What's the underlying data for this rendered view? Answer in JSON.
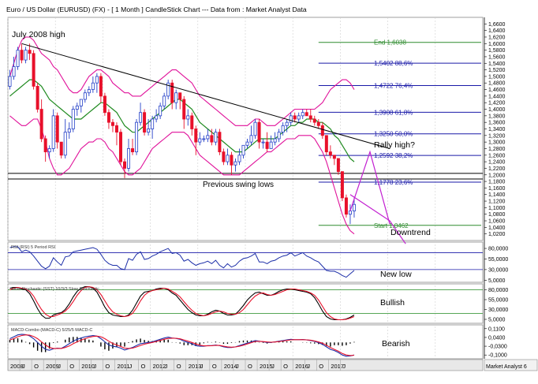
{
  "chart_data": {
    "type": "candlestick",
    "title": "Euro / US Dollar (EURUSD) (FX) - [ 1 Month ] CandleStick Chart --- Data from : Market Analyst Data",
    "footer_label": "Market Analyst 6",
    "x_ticks": [
      "2008",
      "J",
      "O",
      "2009",
      "J",
      "O",
      "2010",
      "J",
      "O",
      "2011",
      "J",
      "O",
      "2012",
      "J",
      "O",
      "2013",
      "J",
      "O",
      "2014",
      "J",
      "O",
      "2015",
      "J",
      "O",
      "2016",
      "J",
      "O",
      "2017",
      "J"
    ],
    "price_axis": {
      "ylim": [
        1.0,
        1.68
      ],
      "tick_labels": [
        "1,6600",
        "1,6400",
        "1,6200",
        "1,6000",
        "1,5800",
        "1,5600",
        "1,5400",
        "1,5200",
        "1,5000",
        "1,4800",
        "1,4600",
        "1,4400",
        "1,4200",
        "1,4000",
        "1,3800",
        "1,3600",
        "1,3400",
        "1,3200",
        "1,3000",
        "1,2800",
        "1,2600",
        "1,2400",
        "1,2200",
        "1,2000",
        "1,1800",
        "1,1600",
        "1,1400",
        "1,1200",
        "1,1000",
        "1,0800",
        "1,0600",
        "1,0400",
        "1,0200"
      ],
      "tick_values": [
        1.66,
        1.64,
        1.62,
        1.6,
        1.58,
        1.56,
        1.54,
        1.52,
        1.5,
        1.48,
        1.46,
        1.44,
        1.42,
        1.4,
        1.38,
        1.36,
        1.34,
        1.32,
        1.3,
        1.28,
        1.26,
        1.24,
        1.22,
        1.2,
        1.18,
        1.16,
        1.14,
        1.12,
        1.1,
        1.08,
        1.06,
        1.04,
        1.02
      ]
    },
    "candles": [
      [
        1.47,
        1.52,
        1.46,
        1.5
      ],
      [
        1.5,
        1.56,
        1.49,
        1.53
      ],
      [
        1.53,
        1.59,
        1.52,
        1.58
      ],
      [
        1.58,
        1.6,
        1.54,
        1.55
      ],
      [
        1.55,
        1.59,
        1.54,
        1.58
      ],
      [
        1.58,
        1.6,
        1.55,
        1.57
      ],
      [
        1.57,
        1.58,
        1.46,
        1.47
      ],
      [
        1.47,
        1.48,
        1.39,
        1.4
      ],
      [
        1.4,
        1.43,
        1.3,
        1.31
      ],
      [
        1.31,
        1.32,
        1.24,
        1.27
      ],
      [
        1.27,
        1.29,
        1.25,
        1.28
      ],
      [
        1.28,
        1.4,
        1.27,
        1.38
      ],
      [
        1.38,
        1.39,
        1.28,
        1.3
      ],
      [
        1.3,
        1.3,
        1.25,
        1.26
      ],
      [
        1.26,
        1.37,
        1.25,
        1.33
      ],
      [
        1.33,
        1.36,
        1.31,
        1.34
      ],
      [
        1.34,
        1.41,
        1.33,
        1.4
      ],
      [
        1.4,
        1.42,
        1.38,
        1.41
      ],
      [
        1.41,
        1.43,
        1.39,
        1.43
      ],
      [
        1.43,
        1.46,
        1.42,
        1.45
      ],
      [
        1.45,
        1.47,
        1.44,
        1.46
      ],
      [
        1.46,
        1.5,
        1.45,
        1.48
      ],
      [
        1.48,
        1.51,
        1.45,
        1.5
      ],
      [
        1.5,
        1.51,
        1.42,
        1.44
      ],
      [
        1.44,
        1.45,
        1.38,
        1.39
      ],
      [
        1.39,
        1.4,
        1.34,
        1.36
      ],
      [
        1.36,
        1.37,
        1.33,
        1.35
      ],
      [
        1.35,
        1.36,
        1.29,
        1.33
      ],
      [
        1.33,
        1.34,
        1.23,
        1.24
      ],
      [
        1.24,
        1.25,
        1.19,
        1.22
      ],
      [
        1.22,
        1.31,
        1.21,
        1.28
      ],
      [
        1.28,
        1.31,
        1.26,
        1.27
      ],
      [
        1.27,
        1.37,
        1.26,
        1.36
      ],
      [
        1.36,
        1.42,
        1.35,
        1.39
      ],
      [
        1.39,
        1.4,
        1.32,
        1.33
      ],
      [
        1.33,
        1.37,
        1.32,
        1.34
      ],
      [
        1.34,
        1.38,
        1.31,
        1.37
      ],
      [
        1.37,
        1.4,
        1.36,
        1.38
      ],
      [
        1.38,
        1.42,
        1.37,
        1.41
      ],
      [
        1.41,
        1.45,
        1.4,
        1.44
      ],
      [
        1.44,
        1.49,
        1.43,
        1.48
      ],
      [
        1.48,
        1.49,
        1.4,
        1.42
      ],
      [
        1.42,
        1.46,
        1.4,
        1.45
      ],
      [
        1.45,
        1.45,
        1.4,
        1.43
      ],
      [
        1.43,
        1.44,
        1.34,
        1.37
      ],
      [
        1.37,
        1.4,
        1.35,
        1.38
      ],
      [
        1.38,
        1.39,
        1.32,
        1.34
      ],
      [
        1.34,
        1.35,
        1.26,
        1.3
      ],
      [
        1.3,
        1.33,
        1.29,
        1.31
      ],
      [
        1.31,
        1.32,
        1.3,
        1.31
      ],
      [
        1.31,
        1.34,
        1.3,
        1.32
      ],
      [
        1.32,
        1.34,
        1.29,
        1.3
      ],
      [
        1.3,
        1.34,
        1.29,
        1.33
      ],
      [
        1.33,
        1.34,
        1.26,
        1.27
      ],
      [
        1.27,
        1.28,
        1.23,
        1.24
      ],
      [
        1.24,
        1.28,
        1.23,
        1.26
      ],
      [
        1.26,
        1.27,
        1.2,
        1.23
      ],
      [
        1.23,
        1.25,
        1.21,
        1.24
      ],
      [
        1.24,
        1.28,
        1.23,
        1.26
      ],
      [
        1.26,
        1.29,
        1.25,
        1.29
      ],
      [
        1.29,
        1.31,
        1.28,
        1.3
      ],
      [
        1.3,
        1.35,
        1.29,
        1.32
      ],
      [
        1.32,
        1.37,
        1.31,
        1.36
      ],
      [
        1.36,
        1.37,
        1.28,
        1.3
      ],
      [
        1.3,
        1.31,
        1.28,
        1.3
      ],
      [
        1.3,
        1.33,
        1.27,
        1.28
      ],
      [
        1.28,
        1.32,
        1.28,
        1.3
      ],
      [
        1.3,
        1.33,
        1.29,
        1.31
      ],
      [
        1.31,
        1.34,
        1.3,
        1.33
      ],
      [
        1.33,
        1.36,
        1.32,
        1.35
      ],
      [
        1.35,
        1.37,
        1.33,
        1.36
      ],
      [
        1.36,
        1.39,
        1.35,
        1.38
      ],
      [
        1.38,
        1.39,
        1.36,
        1.37
      ],
      [
        1.37,
        1.39,
        1.36,
        1.38
      ],
      [
        1.38,
        1.4,
        1.37,
        1.39
      ],
      [
        1.39,
        1.4,
        1.38,
        1.38
      ],
      [
        1.38,
        1.4,
        1.36,
        1.37
      ],
      [
        1.37,
        1.38,
        1.35,
        1.36
      ],
      [
        1.36,
        1.37,
        1.34,
        1.35
      ],
      [
        1.35,
        1.36,
        1.31,
        1.32
      ],
      [
        1.32,
        1.32,
        1.26,
        1.27
      ],
      [
        1.27,
        1.29,
        1.25,
        1.26
      ],
      [
        1.26,
        1.26,
        1.23,
        1.25
      ],
      [
        1.25,
        1.25,
        1.2,
        1.21
      ],
      [
        1.21,
        1.21,
        1.12,
        1.13
      ],
      [
        1.13,
        1.14,
        1.07,
        1.08
      ],
      [
        1.08,
        1.11,
        1.05,
        1.09
      ],
      [
        1.09,
        1.13,
        1.07,
        1.11
      ]
    ],
    "ma20": [
      1.44,
      1.45,
      1.46,
      1.47,
      1.48,
      1.49,
      1.49,
      1.48,
      1.47,
      1.45,
      1.43,
      1.42,
      1.41,
      1.4,
      1.39,
      1.38,
      1.37,
      1.37,
      1.37,
      1.38,
      1.39,
      1.4,
      1.41,
      1.42,
      1.42,
      1.41,
      1.4,
      1.39,
      1.37,
      1.35,
      1.34,
      1.33,
      1.33,
      1.34,
      1.35,
      1.36,
      1.37,
      1.38,
      1.39,
      1.4,
      1.41,
      1.42,
      1.43,
      1.43,
      1.42,
      1.41,
      1.4,
      1.38,
      1.36,
      1.35,
      1.34,
      1.33,
      1.32,
      1.31,
      1.3,
      1.29,
      1.28,
      1.27,
      1.27,
      1.27,
      1.28,
      1.29,
      1.3,
      1.31,
      1.31,
      1.31,
      1.31,
      1.31,
      1.32,
      1.33,
      1.34,
      1.35,
      1.35,
      1.36,
      1.36,
      1.37,
      1.37,
      1.37,
      1.36,
      1.36,
      1.35,
      1.34,
      1.32,
      1.31,
      1.29,
      1.27,
      1.25,
      1.24
    ],
    "bb_upper": [
      1.5,
      1.54,
      1.58,
      1.61,
      1.62,
      1.62,
      1.61,
      1.59,
      1.57,
      1.56,
      1.55,
      1.53,
      1.52,
      1.5,
      1.48,
      1.46,
      1.45,
      1.45,
      1.46,
      1.48,
      1.5,
      1.51,
      1.52,
      1.52,
      1.51,
      1.5,
      1.48,
      1.47,
      1.46,
      1.45,
      1.45,
      1.44,
      1.44,
      1.44,
      1.45,
      1.46,
      1.47,
      1.48,
      1.49,
      1.5,
      1.51,
      1.52,
      1.52,
      1.51,
      1.5,
      1.49,
      1.48,
      1.46,
      1.44,
      1.43,
      1.42,
      1.41,
      1.4,
      1.39,
      1.38,
      1.37,
      1.36,
      1.35,
      1.35,
      1.35,
      1.35,
      1.36,
      1.37,
      1.37,
      1.36,
      1.35,
      1.35,
      1.35,
      1.36,
      1.37,
      1.38,
      1.39,
      1.4,
      1.4,
      1.4,
      1.4,
      1.4,
      1.4,
      1.41,
      1.42,
      1.44,
      1.46,
      1.47,
      1.48,
      1.49,
      1.49,
      1.48,
      1.46
    ],
    "bb_lower": [
      1.38,
      1.37,
      1.36,
      1.35,
      1.35,
      1.36,
      1.37,
      1.37,
      1.34,
      1.3,
      1.25,
      1.22,
      1.2,
      1.2,
      1.21,
      1.22,
      1.24,
      1.26,
      1.28,
      1.29,
      1.3,
      1.3,
      1.31,
      1.31,
      1.3,
      1.28,
      1.27,
      1.25,
      1.23,
      1.21,
      1.2,
      1.2,
      1.21,
      1.22,
      1.24,
      1.26,
      1.28,
      1.29,
      1.3,
      1.31,
      1.32,
      1.33,
      1.33,
      1.33,
      1.33,
      1.32,
      1.3,
      1.28,
      1.26,
      1.25,
      1.24,
      1.23,
      1.22,
      1.21,
      1.2,
      1.2,
      1.2,
      1.2,
      1.2,
      1.21,
      1.22,
      1.23,
      1.24,
      1.25,
      1.26,
      1.27,
      1.27,
      1.28,
      1.29,
      1.3,
      1.31,
      1.31,
      1.31,
      1.32,
      1.32,
      1.32,
      1.32,
      1.31,
      1.29,
      1.27,
      1.24,
      1.2,
      1.16,
      1.12,
      1.08,
      1.05,
      1.03,
      1.02
    ],
    "trendline": {
      "x": [
        3,
        96
      ],
      "y": [
        1.6,
        1.28
      ]
    },
    "july_high_label": "July 2008 high",
    "swing_lows": {
      "label": "Previous swing lows",
      "y": [
        1.2045,
        1.1875
      ]
    },
    "rally": {
      "label": "Rally high?",
      "x": [
        86,
        91,
        96
      ],
      "y": [
        1.09,
        1.27,
        1.05
      ]
    },
    "downtrend": {
      "label": "Downtrend",
      "x": [
        86,
        96,
        100
      ],
      "y": [
        1.14,
        1.06,
        0.99
      ]
    },
    "fib_levels": [
      {
        "value": 1.6038,
        "label": "End 1,6038",
        "color": "#2e8b2e"
      },
      {
        "value": 1.5402,
        "label": "1,5402 88,6%",
        "color": "#1a1aa8"
      },
      {
        "value": 1.4722,
        "label": "1,4722 76,4%",
        "color": "#1a1aa8"
      },
      {
        "value": 1.3908,
        "label": "1,3908 61,8%",
        "color": "#1a1aa8"
      },
      {
        "value": 1.325,
        "label": "1,3250 50,0%",
        "color": "#1a1aa8"
      },
      {
        "value": 1.2592,
        "label": "1,2592 38,2%",
        "color": "#1a1aa8"
      },
      {
        "value": 1.1778,
        "label": "1,1778 23,6%",
        "color": "#1a1aa8"
      },
      {
        "value": 1.0462,
        "label": "Start 1,0462",
        "color": "#2e8b2e"
      }
    ],
    "rsi": {
      "label": "RSI (RSI) 5 Period RSI",
      "annotation": "New low",
      "ylim": [
        0,
        95
      ],
      "tick_labels": [
        "80,0000",
        "55,0000",
        "30,0000",
        "5,0000"
      ],
      "tick_values": [
        80,
        55,
        30,
        5
      ],
      "levels": [
        70,
        30
      ],
      "values": [
        82,
        84,
        84,
        72,
        76,
        72,
        62,
        50,
        38,
        32,
        38,
        58,
        48,
        40,
        60,
        62,
        72,
        74,
        76,
        78,
        80,
        82,
        78,
        66,
        52,
        44,
        40,
        40,
        32,
        30,
        56,
        52,
        66,
        72,
        54,
        56,
        62,
        66,
        72,
        76,
        80,
        68,
        70,
        64,
        50,
        54,
        46,
        40,
        44,
        46,
        50,
        44,
        52,
        40,
        34,
        44,
        36,
        40,
        50,
        56,
        58,
        62,
        68,
        48,
        48,
        44,
        50,
        52,
        58,
        62,
        64,
        70,
        62,
        66,
        70,
        62,
        58,
        52,
        48,
        38,
        28,
        26,
        26,
        22,
        16,
        12,
        20,
        28
      ]
    },
    "stoch": {
      "label": "Slow Stochastic (SST) 10/3/3 Slow Stochastic",
      "annotation": "Bullish",
      "ylim": [
        -5,
        95
      ],
      "tick_labels": [
        "80,0000",
        "55,0000",
        "30,0000",
        "5,0000"
      ],
      "tick_values": [
        80,
        55,
        30,
        5
      ],
      "levels": [
        80,
        20
      ],
      "k": [
        84,
        86,
        86,
        82,
        80,
        70,
        52,
        32,
        16,
        8,
        8,
        16,
        20,
        22,
        30,
        44,
        62,
        76,
        84,
        88,
        88,
        84,
        74,
        56,
        36,
        22,
        16,
        14,
        12,
        12,
        16,
        28,
        46,
        64,
        74,
        76,
        78,
        82,
        84,
        84,
        80,
        72,
        66,
        54,
        42,
        30,
        22,
        16,
        14,
        14,
        18,
        24,
        28,
        26,
        20,
        16,
        16,
        18,
        28,
        40,
        54,
        64,
        72,
        74,
        70,
        66,
        66,
        70,
        76,
        80,
        82,
        82,
        80,
        78,
        76,
        74,
        70,
        60,
        44,
        26,
        12,
        6,
        4,
        4,
        4,
        6,
        10,
        16
      ],
      "d": [
        80,
        84,
        86,
        84,
        82,
        76,
        64,
        46,
        30,
        18,
        12,
        12,
        16,
        20,
        26,
        36,
        50,
        66,
        78,
        86,
        88,
        86,
        80,
        68,
        52,
        36,
        24,
        18,
        14,
        12,
        14,
        20,
        34,
        52,
        66,
        74,
        78,
        80,
        82,
        84,
        82,
        76,
        70,
        62,
        50,
        38,
        28,
        20,
        16,
        14,
        16,
        20,
        24,
        26,
        24,
        20,
        18,
        18,
        22,
        30,
        42,
        54,
        64,
        70,
        72,
        68,
        66,
        68,
        72,
        76,
        80,
        82,
        82,
        80,
        78,
        76,
        72,
        66,
        54,
        38,
        22,
        12,
        6,
        4,
        4,
        5,
        8,
        12
      ]
    },
    "macd": {
      "label": "MACD-Combo (MACD-C) 5/25/5 MACD-C",
      "annotation": "Bearish",
      "ylim": [
        -0.13,
        0.14
      ],
      "tick_labels": [
        "0,1100",
        "0,0400",
        "-0,0300",
        "-0,1000"
      ],
      "tick_values": [
        0.11,
        0.04,
        -0.03,
        -0.1
      ],
      "macd": [
        0.03,
        0.045,
        0.06,
        0.065,
        0.062,
        0.052,
        0.03,
        0.0,
        -0.03,
        -0.055,
        -0.062,
        -0.05,
        -0.045,
        -0.048,
        -0.03,
        -0.01,
        0.01,
        0.025,
        0.035,
        0.045,
        0.05,
        0.055,
        0.05,
        0.03,
        0.005,
        -0.02,
        -0.03,
        -0.035,
        -0.045,
        -0.06,
        -0.05,
        -0.04,
        -0.025,
        -0.01,
        -0.005,
        0.0,
        0.005,
        0.015,
        0.025,
        0.035,
        0.042,
        0.035,
        0.032,
        0.025,
        0.01,
        0.0,
        -0.01,
        -0.025,
        -0.03,
        -0.03,
        -0.025,
        -0.025,
        -0.02,
        -0.025,
        -0.035,
        -0.04,
        -0.04,
        -0.035,
        -0.025,
        -0.015,
        -0.005,
        0.005,
        0.015,
        0.01,
        0.005,
        0.0,
        0.0,
        0.005,
        0.01,
        0.015,
        0.02,
        0.025,
        0.022,
        0.022,
        0.023,
        0.02,
        0.015,
        0.008,
        -0.002,
        -0.015,
        -0.035,
        -0.055,
        -0.065,
        -0.08,
        -0.1,
        -0.11,
        -0.108,
        -0.1
      ],
      "signal": [
        0.02,
        0.03,
        0.045,
        0.055,
        0.06,
        0.058,
        0.048,
        0.03,
        0.005,
        -0.02,
        -0.04,
        -0.048,
        -0.048,
        -0.048,
        -0.04,
        -0.028,
        -0.01,
        0.005,
        0.018,
        0.03,
        0.04,
        0.048,
        0.05,
        0.045,
        0.03,
        0.01,
        -0.008,
        -0.02,
        -0.032,
        -0.045,
        -0.048,
        -0.045,
        -0.036,
        -0.024,
        -0.014,
        -0.006,
        0.0,
        0.008,
        0.016,
        0.025,
        0.032,
        0.034,
        0.033,
        0.029,
        0.02,
        0.01,
        0.0,
        -0.012,
        -0.022,
        -0.027,
        -0.027,
        -0.026,
        -0.023,
        -0.024,
        -0.03,
        -0.035,
        -0.038,
        -0.036,
        -0.03,
        -0.022,
        -0.012,
        -0.002,
        0.008,
        0.009,
        0.007,
        0.004,
        0.002,
        0.004,
        0.007,
        0.011,
        0.016,
        0.021,
        0.022,
        0.022,
        0.022,
        0.021,
        0.018,
        0.012,
        0.004,
        -0.006,
        -0.022,
        -0.04,
        -0.055,
        -0.07,
        -0.088,
        -0.1,
        -0.104,
        -0.102
      ]
    }
  }
}
